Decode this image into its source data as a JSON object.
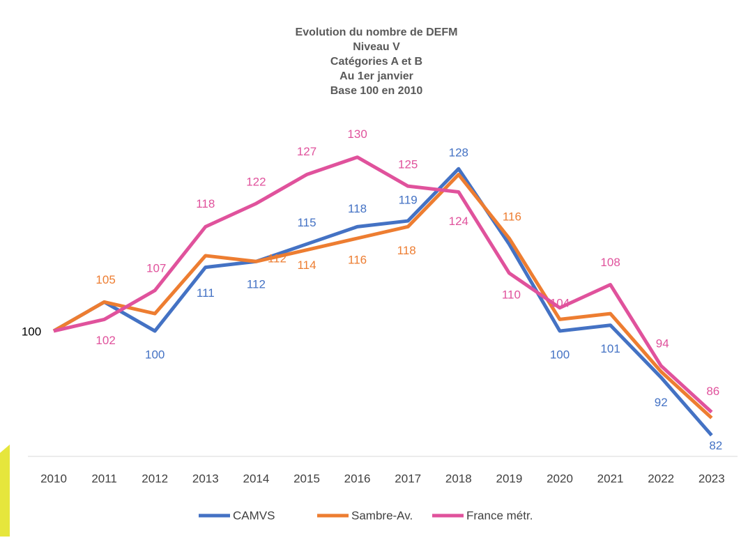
{
  "chart_data": {
    "type": "line",
    "title": [
      "Evolution du nombre de DEFM",
      "Niveau V",
      "Catégories A et B",
      "Au 1er janvier",
      "Base 100 en 2010"
    ],
    "categories": [
      "2010",
      "2011",
      "2012",
      "2013",
      "2014",
      "2015",
      "2016",
      "2017",
      "2018",
      "2019",
      "2020",
      "2021",
      "2022",
      "2023"
    ],
    "ylim": [
      78,
      135
    ],
    "series": [
      {
        "name": "CAMVS",
        "color": "#4472c4",
        "values": [
          100,
          105,
          100,
          111,
          112,
          115,
          118,
          119,
          128,
          115,
          100,
          101,
          92,
          82
        ],
        "value_labels": [
          100,
          null,
          100,
          111,
          112,
          115,
          118,
          119,
          128,
          null,
          100,
          101,
          92,
          82
        ]
      },
      {
        "name": "Sambre-Av.",
        "color": "#ed7d31",
        "values": [
          100,
          105,
          103,
          113,
          112,
          114,
          116,
          118,
          127,
          116,
          102,
          103,
          93,
          85
        ],
        "value_labels": [
          null,
          105,
          null,
          null,
          112,
          114,
          116,
          118,
          null,
          116,
          null,
          null,
          null,
          null
        ]
      },
      {
        "name": "France métr.",
        "color": "#e0529c",
        "values": [
          100,
          102,
          107,
          118,
          122,
          127,
          130,
          125,
          124,
          110,
          104,
          108,
          94,
          86
        ],
        "value_labels": [
          null,
          102,
          107,
          118,
          122,
          127,
          130,
          125,
          124,
          110,
          104,
          108,
          94,
          86
        ]
      }
    ]
  }
}
